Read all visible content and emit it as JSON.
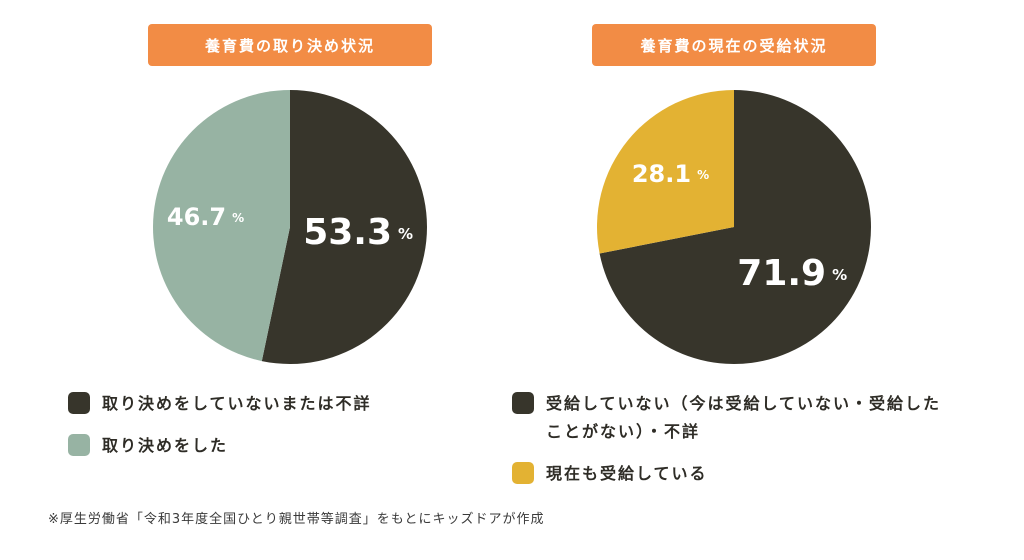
{
  "colors": {
    "title_bg": "#f28c45",
    "dark": "#37352b",
    "sage": "#97b3a3",
    "mustard": "#e3b233",
    "label_text": "#ffffff"
  },
  "chart_data": [
    {
      "type": "pie",
      "title": "養育費の取り決め状況",
      "slices": [
        {
          "label": "取り決めをしていないまたは不詳",
          "value": 53.3,
          "display": "53.3",
          "unit": "%",
          "color": "#37352b"
        },
        {
          "label": "取り決めをした",
          "value": 46.7,
          "display": "46.7",
          "unit": "%",
          "color": "#97b3a3"
        }
      ]
    },
    {
      "type": "pie",
      "title": "養育費の現在の受給状況",
      "slices": [
        {
          "label": "受給していない（今は受給していない・受給したことがない）・不詳",
          "value": 71.9,
          "display": "71.9",
          "unit": "%",
          "color": "#37352b"
        },
        {
          "label": "現在も受給している",
          "value": 28.1,
          "display": "28.1",
          "unit": "%",
          "color": "#e3b233"
        }
      ]
    }
  ],
  "footnote": "※厚生労働省「令和3年度全国ひとり親世帯等調査」をもとにキッズドアが作成"
}
